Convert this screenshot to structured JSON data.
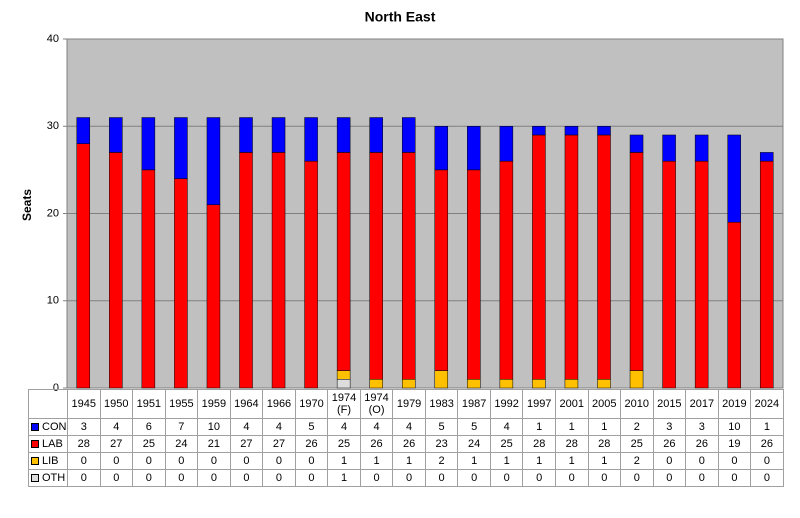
{
  "chart_data": {
    "type": "stacked_bar",
    "title": "North East",
    "y_label": "Seats",
    "categories": [
      "1945",
      "1950",
      "1951",
      "1955",
      "1959",
      "1964",
      "1966",
      "1970",
      "1974 (F)",
      "1974 (O)",
      "1979",
      "1983",
      "1987",
      "1992",
      "1997",
      "2001",
      "2005",
      "2010",
      "2015",
      "2017",
      "2019",
      "2024"
    ],
    "series": [
      {
        "name": "CON",
        "color": "#0000ff",
        "values": [
          3,
          4,
          6,
          7,
          10,
          4,
          4,
          5,
          4,
          4,
          4,
          5,
          5,
          4,
          1,
          1,
          1,
          2,
          3,
          3,
          10,
          1
        ]
      },
      {
        "name": "LAB",
        "color": "#ff0000",
        "values": [
          28,
          27,
          25,
          24,
          21,
          27,
          27,
          26,
          25,
          26,
          26,
          23,
          24,
          25,
          28,
          28,
          28,
          25,
          26,
          26,
          19,
          26
        ]
      },
      {
        "name": "LIB",
        "color": "#ffc000",
        "values": [
          0,
          0,
          0,
          0,
          0,
          0,
          0,
          0,
          1,
          1,
          1,
          2,
          1,
          1,
          1,
          1,
          1,
          2,
          0,
          0,
          0,
          0
        ]
      },
      {
        "name": "OTH",
        "color": "#dddddd",
        "values": [
          0,
          0,
          0,
          0,
          0,
          0,
          0,
          0,
          1,
          0,
          0,
          0,
          0,
          0,
          0,
          0,
          0,
          0,
          0,
          0,
          0,
          0
        ]
      }
    ],
    "stack_order": [
      "OTH",
      "LIB",
      "LAB",
      "CON"
    ],
    "ylim": [
      0,
      40
    ],
    "yticks": [
      0,
      10,
      20,
      30,
      40
    ],
    "grid": true,
    "plot_background": "#c0c0c0"
  }
}
